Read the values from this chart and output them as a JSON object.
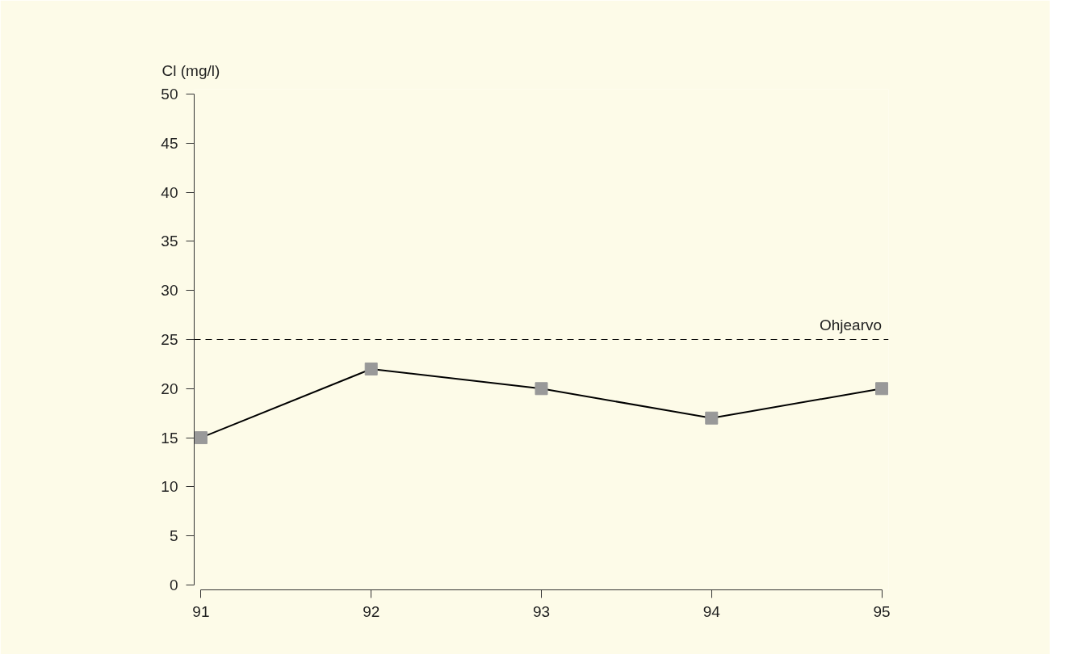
{
  "chart_data": {
    "type": "line",
    "ylabel": "Cl (mg/l)",
    "x": [
      91,
      92,
      93,
      94,
      95
    ],
    "series": [
      {
        "color": "#999999",
        "values": [
          15,
          22,
          20,
          17,
          20
        ]
      }
    ],
    "xlim": [
      91,
      95
    ],
    "xticks": [
      91,
      92,
      93,
      94,
      95
    ],
    "ylim": [
      0,
      50
    ],
    "yticks": [
      0,
      5,
      10,
      15,
      20,
      25,
      30,
      35,
      40,
      45,
      50
    ],
    "ref_lines": [
      {
        "axis": "y",
        "value": 25,
        "label": "Ohjearvo",
        "color": "#000000",
        "line_style": "dashed"
      }
    ],
    "marker": "square",
    "line_style": "solid",
    "grid": false
  }
}
